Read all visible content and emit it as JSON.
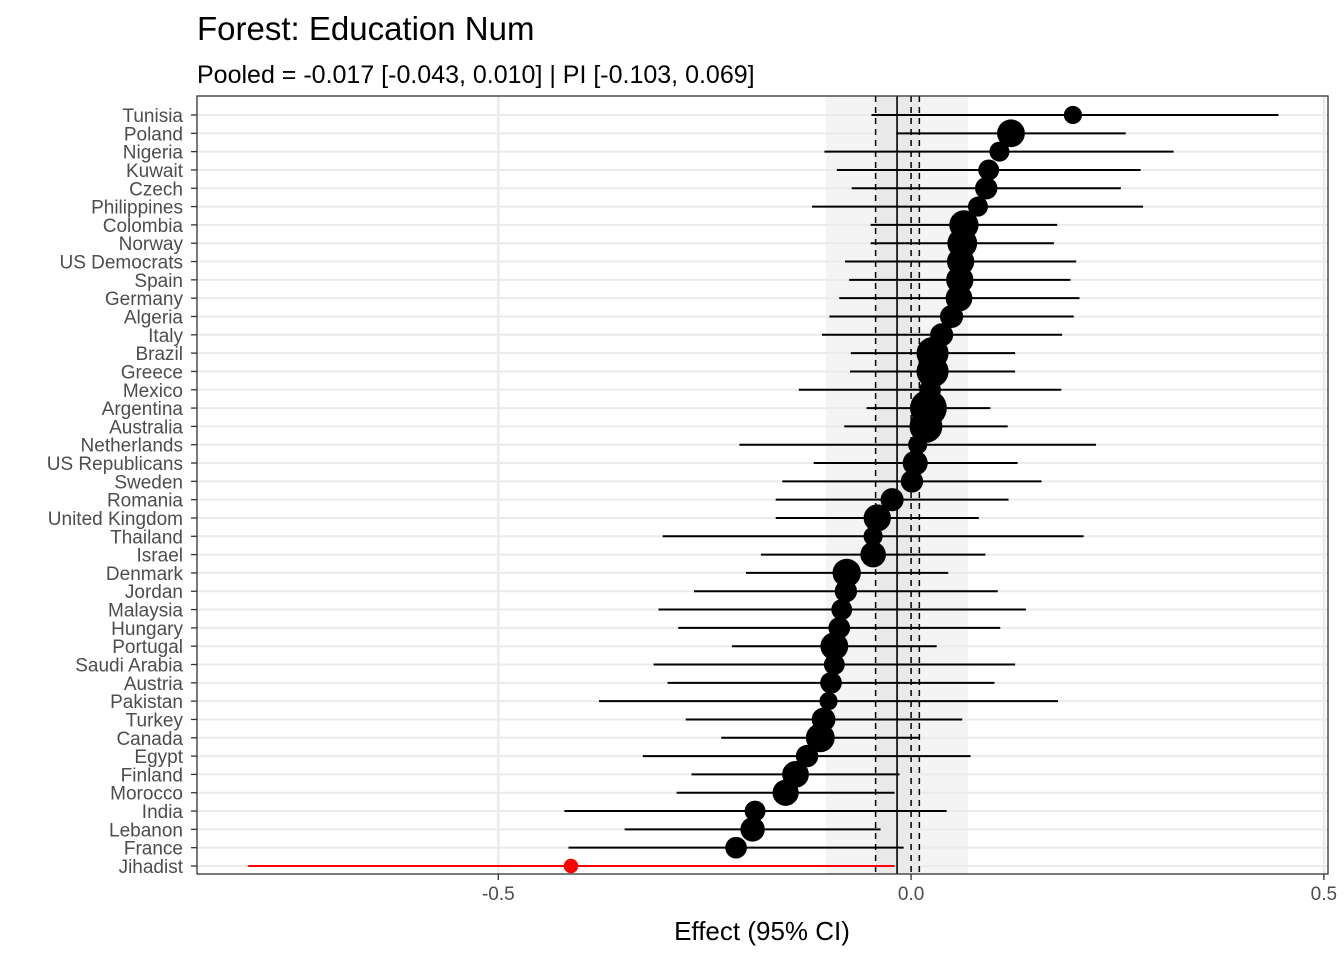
{
  "chart_data": {
    "type": "forest",
    "title": "Forest: Education Num",
    "subtitle": "Pooled = -0.017 [-0.043, 0.010] | PI [-0.103, 0.069]",
    "xlabel": "Effect (95% CI)",
    "xlim": [
      -0.865,
      0.505
    ],
    "xticks": [
      -0.5,
      0.0,
      0.5
    ],
    "xtick_labels": [
      "-0.5",
      "0.0",
      "0.5"
    ],
    "grid": true,
    "pooled": {
      "estimate": -0.017,
      "ci": [
        -0.043,
        0.01
      ],
      "pi": [
        -0.103,
        0.069
      ]
    },
    "highlight_color": "#ff0000",
    "point_color": "#000000",
    "rows": [
      {
        "label": "Tunisia",
        "est": 0.196,
        "lo": -0.048,
        "hi": 0.445,
        "weight": 0.5
      },
      {
        "label": "Poland",
        "est": 0.121,
        "lo": -0.018,
        "hi": 0.26,
        "weight": 1.9
      },
      {
        "label": "Nigeria",
        "est": 0.107,
        "lo": -0.105,
        "hi": 0.318,
        "weight": 0.7
      },
      {
        "label": "Kuwait",
        "est": 0.094,
        "lo": -0.09,
        "hi": 0.278,
        "weight": 0.8
      },
      {
        "label": "Czech",
        "est": 0.091,
        "lo": -0.072,
        "hi": 0.254,
        "weight": 1.0
      },
      {
        "label": "Philippines",
        "est": 0.081,
        "lo": -0.12,
        "hi": 0.281,
        "weight": 0.7
      },
      {
        "label": "Colombia",
        "est": 0.064,
        "lo": -0.049,
        "hi": 0.177,
        "weight": 2.2
      },
      {
        "label": "Norway",
        "est": 0.062,
        "lo": -0.049,
        "hi": 0.173,
        "weight": 2.3
      },
      {
        "label": "US Democrats",
        "est": 0.06,
        "lo": -0.08,
        "hi": 0.2,
        "weight": 1.8
      },
      {
        "label": "Spain",
        "est": 0.059,
        "lo": -0.075,
        "hi": 0.193,
        "weight": 1.8
      },
      {
        "label": "Germany",
        "est": 0.058,
        "lo": -0.087,
        "hi": 0.204,
        "weight": 1.7
      },
      {
        "label": "Algeria",
        "est": 0.049,
        "lo": -0.099,
        "hi": 0.197,
        "weight": 1.1
      },
      {
        "label": "Italy",
        "est": 0.037,
        "lo": -0.108,
        "hi": 0.183,
        "weight": 1.1
      },
      {
        "label": "Brazil",
        "est": 0.026,
        "lo": -0.073,
        "hi": 0.126,
        "weight": 2.8
      },
      {
        "label": "Greece",
        "est": 0.026,
        "lo": -0.074,
        "hi": 0.126,
        "weight": 2.8
      },
      {
        "label": "Mexico",
        "est": 0.023,
        "lo": -0.136,
        "hi": 0.182,
        "weight": 0.9
      },
      {
        "label": "Argentina",
        "est": 0.021,
        "lo": -0.054,
        "hi": 0.096,
        "weight": 4.0
      },
      {
        "label": "Australia",
        "est": 0.018,
        "lo": -0.081,
        "hi": 0.117,
        "weight": 3.0
      },
      {
        "label": "Netherlands",
        "est": 0.008,
        "lo": -0.208,
        "hi": 0.224,
        "weight": 0.6
      },
      {
        "label": "US Republicans",
        "est": 0.005,
        "lo": -0.118,
        "hi": 0.129,
        "weight": 1.4
      },
      {
        "label": "Sweden",
        "est": 0.001,
        "lo": -0.156,
        "hi": 0.158,
        "weight": 1.0
      },
      {
        "label": "Romania",
        "est": -0.023,
        "lo": -0.164,
        "hi": 0.118,
        "weight": 1.1
      },
      {
        "label": "United Kingdom",
        "est": -0.041,
        "lo": -0.164,
        "hi": 0.082,
        "weight": 1.8
      },
      {
        "label": "Thailand",
        "est": -0.046,
        "lo": -0.301,
        "hi": 0.209,
        "weight": 0.6
      },
      {
        "label": "Israel",
        "est": -0.046,
        "lo": -0.182,
        "hi": 0.09,
        "weight": 1.5
      },
      {
        "label": "Denmark",
        "est": -0.078,
        "lo": -0.2,
        "hi": 0.045,
        "weight": 2.0
      },
      {
        "label": "Jordan",
        "est": -0.079,
        "lo": -0.263,
        "hi": 0.105,
        "weight": 1.0
      },
      {
        "label": "Malaysia",
        "est": -0.084,
        "lo": -0.306,
        "hi": 0.139,
        "weight": 0.8
      },
      {
        "label": "Hungary",
        "est": -0.087,
        "lo": -0.282,
        "hi": 0.108,
        "weight": 0.9
      },
      {
        "label": "Portugal",
        "est": -0.093,
        "lo": -0.217,
        "hi": 0.031,
        "weight": 1.9
      },
      {
        "label": "Saudi Arabia",
        "est": -0.093,
        "lo": -0.312,
        "hi": 0.126,
        "weight": 0.8
      },
      {
        "label": "Austria",
        "est": -0.097,
        "lo": -0.295,
        "hi": 0.101,
        "weight": 0.9
      },
      {
        "label": "Pakistan",
        "est": -0.1,
        "lo": -0.378,
        "hi": 0.178,
        "weight": 0.5
      },
      {
        "label": "Turkey",
        "est": -0.106,
        "lo": -0.273,
        "hi": 0.062,
        "weight": 1.2
      },
      {
        "label": "Canada",
        "est": -0.11,
        "lo": -0.23,
        "hi": 0.01,
        "weight": 2.1
      },
      {
        "label": "Egypt",
        "est": -0.126,
        "lo": -0.325,
        "hi": 0.072,
        "weight": 1.0
      },
      {
        "label": "Finland",
        "est": -0.14,
        "lo": -0.266,
        "hi": -0.014,
        "weight": 1.7
      },
      {
        "label": "Morocco",
        "est": -0.152,
        "lo": -0.284,
        "hi": -0.02,
        "weight": 1.6
      },
      {
        "label": "India",
        "est": -0.189,
        "lo": -0.42,
        "hi": 0.043,
        "weight": 0.8
      },
      {
        "label": "Lebanon",
        "est": -0.192,
        "lo": -0.347,
        "hi": -0.037,
        "weight": 1.3
      },
      {
        "label": "France",
        "est": -0.212,
        "lo": -0.415,
        "hi": -0.009,
        "weight": 0.9
      },
      {
        "label": "Jihadist",
        "est": -0.412,
        "lo": -0.803,
        "hi": -0.02,
        "weight": 0.2,
        "highlight": true
      }
    ]
  }
}
